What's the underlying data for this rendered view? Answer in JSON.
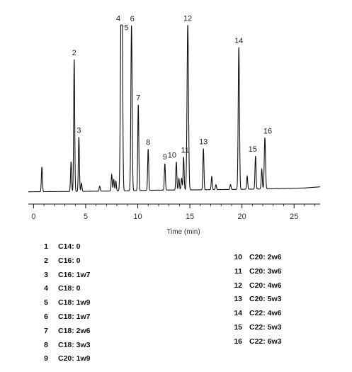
{
  "chart_data": {
    "type": "line",
    "xlabel": "Time (min)",
    "xlim": [
      -0.5,
      27.5
    ],
    "xticks": [
      0,
      5,
      10,
      15,
      20,
      25
    ],
    "baseline": [
      [
        -0.5,
        0.01
      ],
      [
        4,
        0.012
      ],
      [
        8,
        0.015
      ],
      [
        12,
        0.02
      ],
      [
        16,
        0.022
      ],
      [
        20,
        0.025
      ],
      [
        24,
        0.03
      ],
      [
        26,
        0.033
      ],
      [
        27.5,
        0.04
      ]
    ],
    "peaks": [
      {
        "t": 0.8,
        "h": 0.15,
        "w": 0.05
      },
      {
        "t": 3.6,
        "h": 0.18,
        "w": 0.05
      },
      {
        "t": 3.9,
        "h": 0.8,
        "w": 0.05,
        "label": "2"
      },
      {
        "t": 4.35,
        "h": 0.33,
        "w": 0.05,
        "label": "3"
      },
      {
        "t": 4.6,
        "h": 0.05,
        "w": 0.05
      },
      {
        "t": 6.35,
        "h": 0.03,
        "w": 0.05
      },
      {
        "t": 7.5,
        "h": 0.1,
        "w": 0.05
      },
      {
        "t": 7.7,
        "h": 0.07,
        "w": 0.05
      },
      {
        "t": 7.9,
        "h": 0.06,
        "w": 0.05
      },
      {
        "t": 8.4,
        "h": 1.0,
        "w": 0.07,
        "label": "4"
      },
      {
        "t": 8.5,
        "h": 0.97,
        "w": 0.06,
        "label": "5"
      },
      {
        "t": 9.4,
        "h": 1.0,
        "w": 0.06,
        "label": "6"
      },
      {
        "t": 10.05,
        "h": 0.52,
        "w": 0.05,
        "label": "7"
      },
      {
        "t": 11.0,
        "h": 0.25,
        "w": 0.05,
        "label": "8"
      },
      {
        "t": 12.6,
        "h": 0.16,
        "w": 0.05,
        "label": "9"
      },
      {
        "t": 13.7,
        "h": 0.17,
        "w": 0.05,
        "label": "10"
      },
      {
        "t": 13.95,
        "h": 0.07,
        "w": 0.05
      },
      {
        "t": 14.2,
        "h": 0.07,
        "w": 0.05
      },
      {
        "t": 14.4,
        "h": 0.2,
        "w": 0.05,
        "label": "11"
      },
      {
        "t": 14.8,
        "h": 1.0,
        "w": 0.07,
        "label": "12"
      },
      {
        "t": 16.3,
        "h": 0.25,
        "w": 0.05,
        "label": "13"
      },
      {
        "t": 17.1,
        "h": 0.08,
        "w": 0.05
      },
      {
        "t": 17.5,
        "h": 0.03,
        "w": 0.05
      },
      {
        "t": 18.9,
        "h": 0.03,
        "w": 0.05
      },
      {
        "t": 19.7,
        "h": 0.86,
        "w": 0.06,
        "label": "14"
      },
      {
        "t": 20.5,
        "h": 0.08,
        "w": 0.05
      },
      {
        "t": 21.3,
        "h": 0.2,
        "w": 0.05,
        "label": "15"
      },
      {
        "t": 21.9,
        "h": 0.12,
        "w": 0.05
      },
      {
        "t": 22.2,
        "h": 0.31,
        "w": 0.06,
        "label": "16"
      }
    ],
    "legend": [
      {
        "num": "1",
        "name": "C14: 0"
      },
      {
        "num": "2",
        "name": "C16: 0"
      },
      {
        "num": "3",
        "name": "C16: 1w7"
      },
      {
        "num": "4",
        "name": "C18: 0"
      },
      {
        "num": "5",
        "name": "C18: 1w9"
      },
      {
        "num": "6",
        "name": "C18: 1w7"
      },
      {
        "num": "7",
        "name": "C18: 2w6"
      },
      {
        "num": "8",
        "name": "C18: 3w3"
      },
      {
        "num": "9",
        "name": "C20: 1w9"
      },
      {
        "num": "10",
        "name": "C20: 2w6"
      },
      {
        "num": "11",
        "name": "C20: 3w6"
      },
      {
        "num": "12",
        "name": "C20: 4w6"
      },
      {
        "num": "13",
        "name": "C20: 5w3"
      },
      {
        "num": "14",
        "name": "C22: 4w6"
      },
      {
        "num": "15",
        "name": "C22: 5w3"
      },
      {
        "num": "16",
        "name": "C22: 6w3"
      }
    ]
  }
}
